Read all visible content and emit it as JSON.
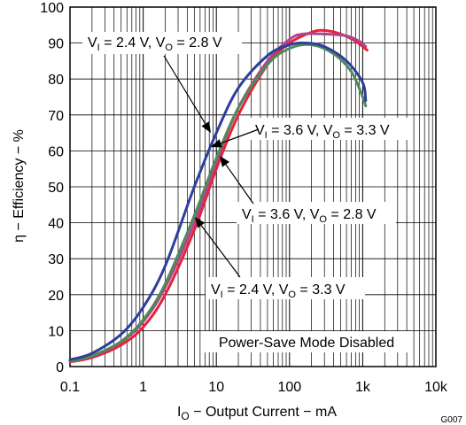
{
  "chart_data": {
    "type": "line",
    "xscale": "log",
    "xlim": [
      0.1,
      10000
    ],
    "ylim": [
      0,
      100
    ],
    "grid": true,
    "xlabel": {
      "prefix": "I",
      "sub": "O",
      "rest": " − Output Current − mA"
    },
    "ylabel": "η − Efficiency − %",
    "x_ticks": [
      {
        "value": 0.1,
        "label": "0.1"
      },
      {
        "value": 1,
        "label": "1"
      },
      {
        "value": 10,
        "label": "10"
      },
      {
        "value": 100,
        "label": "100"
      },
      {
        "value": 1000,
        "label": "1k"
      },
      {
        "value": 10000,
        "label": "10k"
      }
    ],
    "y_ticks": [
      {
        "value": 0,
        "label": "0"
      },
      {
        "value": 10,
        "label": "10"
      },
      {
        "value": 20,
        "label": "20"
      },
      {
        "value": 30,
        "label": "30"
      },
      {
        "value": 40,
        "label": "40"
      },
      {
        "value": 50,
        "label": "50"
      },
      {
        "value": 60,
        "label": "60"
      },
      {
        "value": 70,
        "label": "70"
      },
      {
        "value": 80,
        "label": "80"
      },
      {
        "value": 90,
        "label": "90"
      },
      {
        "value": 100,
        "label": "100"
      }
    ],
    "series": [
      {
        "name": "VI = 2.4 V, VO = 3.3 V",
        "color": "#e8213a",
        "x": [
          0.1,
          0.2,
          0.5,
          1,
          2,
          5,
          10,
          20,
          50,
          100,
          200,
          300,
          500,
          800,
          1150
        ],
        "y": [
          1.3,
          2.5,
          6,
          11,
          20,
          38,
          55,
          70,
          84,
          90,
          93,
          93.5,
          92.5,
          90.5,
          88
        ]
      },
      {
        "name": "VI = 3.6 V, VO = 3.3 V",
        "color": "#b0458e",
        "x": [
          0.1,
          0.2,
          0.5,
          1,
          2,
          5,
          10,
          20,
          50,
          100,
          150,
          300,
          600,
          900,
          1100
        ],
        "y": [
          1.5,
          2.9,
          6.8,
          12.5,
          22,
          40,
          57,
          72,
          85,
          91,
          92.5,
          92.5,
          92,
          90.5,
          89
        ]
      },
      {
        "name": "VI = 3.6 V, VO = 2.8 V",
        "color": "#4e8a5a",
        "x": [
          0.1,
          0.2,
          0.5,
          1,
          2,
          5,
          10,
          20,
          50,
          100,
          200,
          400,
          700,
          1000,
          1100
        ],
        "y": [
          1.5,
          3,
          7,
          13,
          23,
          42,
          58,
          72,
          84,
          88.5,
          89.5,
          87,
          82,
          75,
          72.5
        ]
      },
      {
        "name": "VI = 2.4 V, VO = 2.8 V",
        "color": "#2e3e9c",
        "x": [
          0.1,
          0.2,
          0.5,
          1,
          2,
          5,
          10,
          20,
          50,
          100,
          170,
          300,
          600,
          1000,
          1100
        ],
        "y": [
          1.9,
          3.7,
          9,
          16.5,
          28,
          50,
          65,
          77.5,
          86.5,
          89.5,
          90,
          89,
          85,
          79,
          74
        ]
      }
    ],
    "annotations": [
      {
        "id": "a24_28",
        "vi": "2.4",
        "vo": "2.8"
      },
      {
        "id": "a36_33",
        "vi": "3.6",
        "vo": "3.3"
      },
      {
        "id": "a36_28",
        "vi": "3.6",
        "vo": "2.8"
      },
      {
        "id": "a24_33",
        "vi": "2.4",
        "vo": "3.3"
      }
    ],
    "note": "Power-Save Mode Disabled",
    "figure_code": "G007"
  }
}
